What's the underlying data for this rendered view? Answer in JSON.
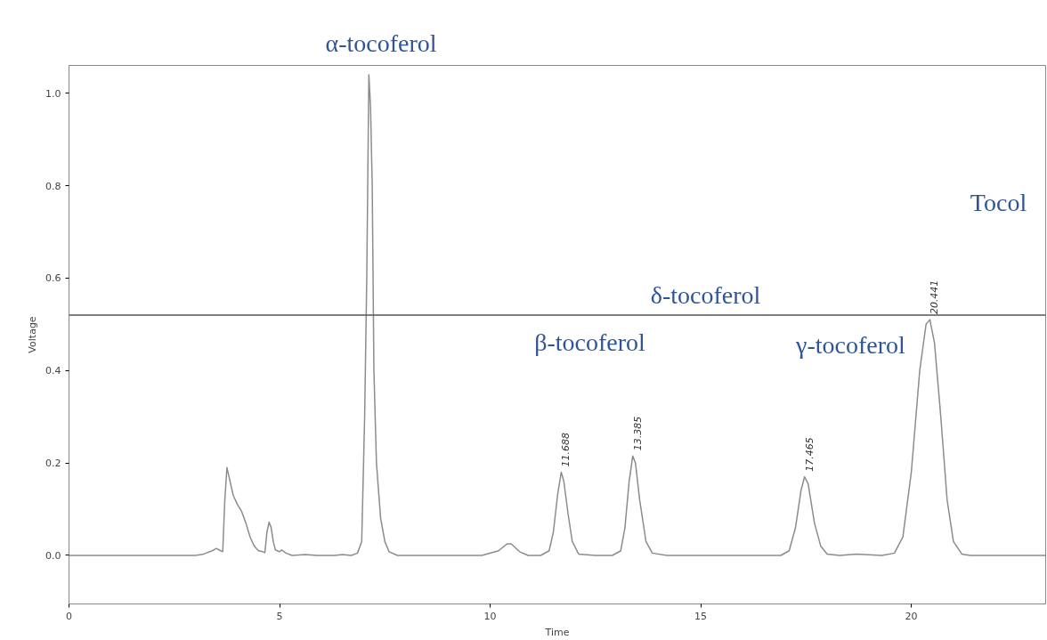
{
  "chart_data": {
    "type": "line",
    "xlabel": "Time",
    "ylabel": "Voltage",
    "xlim": [
      0,
      23.19
    ],
    "ylim": [
      -0.105,
      1.06
    ],
    "xticks": [
      0,
      5,
      10,
      15,
      20
    ],
    "yticks": [
      {
        "value": 0,
        "label": "0.0"
      },
      {
        "value": 0.2,
        "label": "0.2"
      },
      {
        "value": 0.4,
        "label": "0.4"
      },
      {
        "value": 0.6,
        "label": "0.6"
      },
      {
        "value": 0.8,
        "label": "0.8"
      },
      {
        "value": 1.0,
        "label": "1.0"
      }
    ],
    "grid": false,
    "marker": "none",
    "line_style": "solid",
    "series": [
      {
        "color": "#8c8c8c",
        "x": [
          0,
          3.0,
          3.2,
          3.4,
          3.5,
          3.6,
          3.65,
          3.7,
          3.75,
          3.8,
          3.9,
          4.0,
          4.1,
          4.2,
          4.3,
          4.4,
          4.5,
          4.6,
          4.65,
          4.7,
          4.75,
          4.8,
          4.85,
          4.9,
          5.0,
          5.05,
          5.15,
          5.3,
          5.6,
          5.9,
          6.3,
          6.5,
          6.7,
          6.85,
          6.95,
          7.02,
          7.07,
          7.12,
          7.16,
          7.2,
          7.24,
          7.3,
          7.4,
          7.5,
          7.6,
          7.8,
          9.8,
          10.2,
          10.4,
          10.5,
          10.7,
          10.9,
          11.2,
          11.4,
          11.5,
          11.6,
          11.688,
          11.75,
          11.85,
          11.95,
          12.1,
          12.5,
          12.9,
          13.1,
          13.2,
          13.3,
          13.385,
          13.45,
          13.55,
          13.7,
          13.85,
          14.2,
          16.9,
          17.1,
          17.25,
          17.38,
          17.465,
          17.55,
          17.7,
          17.85,
          18.0,
          18.3,
          18.7,
          18.9,
          19.3,
          19.6,
          19.8,
          20.0,
          20.2,
          20.35,
          20.441,
          20.55,
          20.7,
          20.85,
          21.0,
          21.2,
          21.4,
          23.19
        ],
        "values": [
          0,
          0,
          0.003,
          0.01,
          0.015,
          0.01,
          0.008,
          0.12,
          0.19,
          0.17,
          0.13,
          0.11,
          0.095,
          0.07,
          0.04,
          0.02,
          0.01,
          0.008,
          0.006,
          0.05,
          0.072,
          0.06,
          0.03,
          0.012,
          0.008,
          0.012,
          0.005,
          0,
          0.002,
          0,
          0,
          0.002,
          0,
          0.005,
          0.03,
          0.3,
          0.6,
          1.04,
          0.97,
          0.8,
          0.4,
          0.2,
          0.08,
          0.03,
          0.008,
          0,
          0,
          0.01,
          0.025,
          0.025,
          0.008,
          0,
          0,
          0.01,
          0.05,
          0.13,
          0.18,
          0.16,
          0.09,
          0.03,
          0.003,
          0,
          0,
          0.01,
          0.06,
          0.16,
          0.215,
          0.2,
          0.12,
          0.03,
          0.005,
          0,
          0,
          0.01,
          0.06,
          0.14,
          0.17,
          0.155,
          0.07,
          0.02,
          0.003,
          0,
          0.003,
          0.002,
          0,
          0.005,
          0.04,
          0.18,
          0.4,
          0.5,
          0.51,
          0.46,
          0.3,
          0.12,
          0.03,
          0.003,
          0,
          0
        ]
      }
    ],
    "ref_lines": [
      {
        "axis": "y",
        "value": 0.52,
        "color": "#555555"
      }
    ],
    "annotations": [
      "α-tocoferol",
      "β-tocoferol",
      "δ-tocoferol",
      "γ-tocoferol",
      "Tocol",
      {
        "text": "11.688",
        "x": 11.688,
        "y": 0.18
      },
      {
        "text": "13.385",
        "x": 13.385,
        "y": 0.215
      },
      {
        "text": "17.465",
        "x": 17.465,
        "y": 0.17
      },
      {
        "text": "20.441",
        "x": 20.441,
        "y": 0.51
      }
    ]
  }
}
